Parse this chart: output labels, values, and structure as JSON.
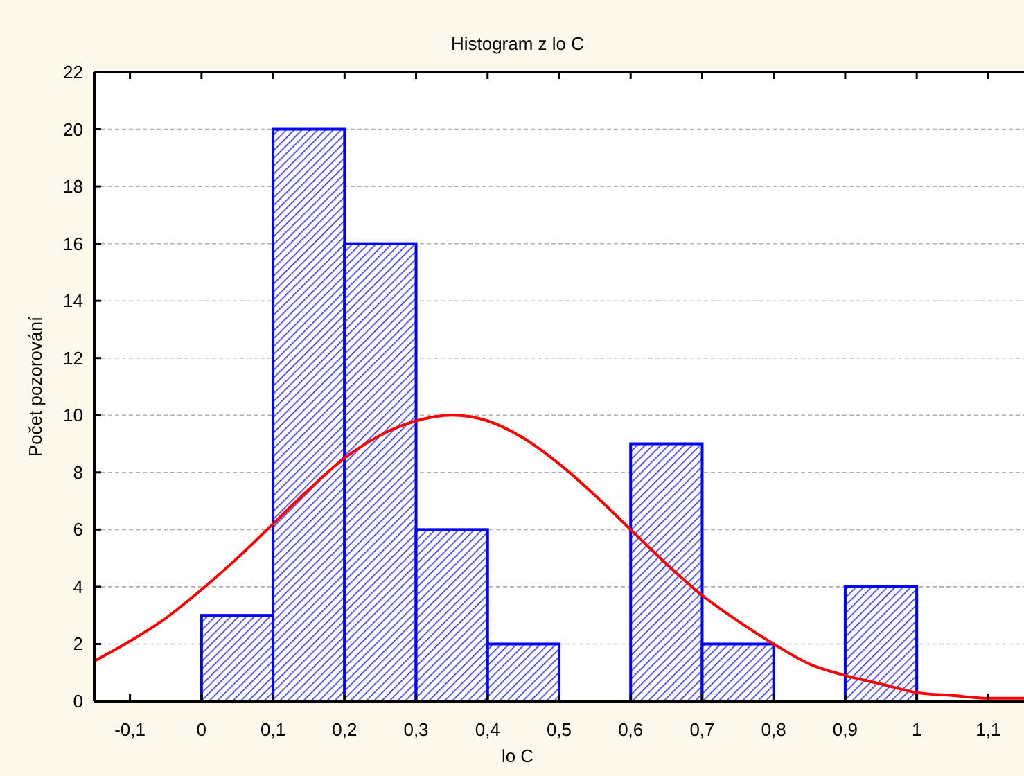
{
  "chart_data": {
    "type": "histogram",
    "title": "Histogram z lo C",
    "xlabel": "lo C",
    "ylabel": "Počet pozorování",
    "bins": [
      0,
      0.1,
      0.2,
      0.3,
      0.4,
      0.5,
      0.6,
      0.7,
      0.8,
      0.9,
      1.0
    ],
    "series": [
      {
        "color": "#0000ff",
        "values": [
          3,
          20,
          16,
          6,
          2,
          0,
          9,
          2,
          0,
          4
        ]
      },
      {
        "type": "line",
        "color": "#ff0000",
        "x": [
          -0.15,
          -0.1,
          -0.05,
          0,
          0.05,
          0.1,
          0.15,
          0.2,
          0.25,
          0.3,
          0.35,
          0.4,
          0.45,
          0.5,
          0.55,
          0.6,
          0.65,
          0.7,
          0.75,
          0.8,
          0.85,
          0.9,
          0.95,
          1.0,
          1.05,
          1.1,
          1.15
        ],
        "values": [
          1.4,
          2.1,
          2.9,
          3.9,
          5.0,
          6.2,
          7.4,
          8.5,
          9.3,
          9.8,
          10.0,
          9.8,
          9.2,
          8.3,
          7.2,
          6.0,
          4.8,
          3.7,
          2.8,
          2.0,
          1.3,
          0.9,
          0.6,
          0.3,
          0.2,
          0.1,
          0.1
        ]
      }
    ],
    "xlim": [
      -0.15,
      1.15
    ],
    "xticks": [
      {
        "value": -0.1,
        "label": "-0,1"
      },
      0,
      {
        "value": 0.1,
        "label": "0,1"
      },
      {
        "value": 0.2,
        "label": "0,2"
      },
      {
        "value": 0.3,
        "label": "0,3"
      },
      {
        "value": 0.4,
        "label": "0,4"
      },
      {
        "value": 0.5,
        "label": "0,5"
      },
      {
        "value": 0.6,
        "label": "0,6"
      },
      {
        "value": 0.7,
        "label": "0,7"
      },
      {
        "value": 0.8,
        "label": "0,8"
      },
      {
        "value": 0.9,
        "label": "0,9"
      },
      1,
      {
        "value": 1.1,
        "label": "1,1"
      }
    ],
    "ylim": [
      0,
      22
    ],
    "yticks": [
      0,
      2,
      4,
      6,
      8,
      10,
      12,
      14,
      16,
      18,
      20,
      22
    ],
    "grid": "y"
  }
}
